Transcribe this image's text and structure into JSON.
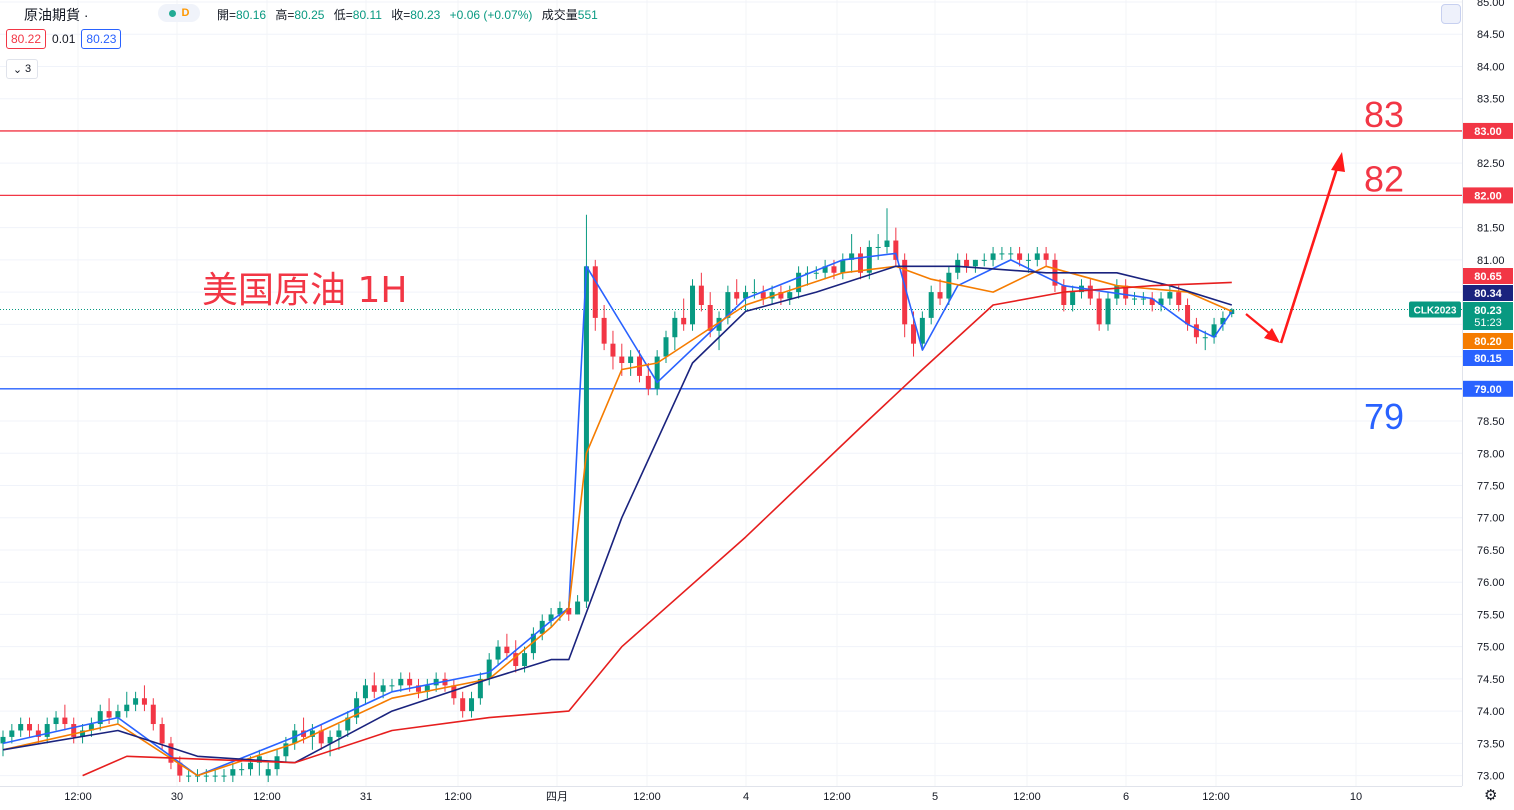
{
  "header": {
    "symbol": "原油期貨 ·",
    "interval_badge": "D",
    "ohlc": {
      "open_label": "開=",
      "open": "80.16",
      "high_label": "高=",
      "high": "80.25",
      "low_label": "低=",
      "low": "80.11",
      "close_label": "收=",
      "close": "80.23",
      "change": "+0.06 (+0.07%)",
      "volume_label": "成交量",
      "volume": "551"
    },
    "bid": "80.22",
    "spread": "0.01",
    "ask": "80.23",
    "indicator_count": "3"
  },
  "chart_data": {
    "type": "candlestick",
    "title": "美国原油 1H",
    "annotations": [
      {
        "text": "83",
        "price": 83.0,
        "color": "#f23645"
      },
      {
        "text": "82",
        "price": 82.0,
        "color": "#f23645"
      },
      {
        "text": "79",
        "price": 79.0,
        "color": "#2962ff"
      }
    ],
    "ylim": [
      72.9,
      85.0
    ],
    "y_ticks": [
      "85.00",
      "84.50",
      "84.00",
      "83.50",
      "83.00",
      "82.50",
      "82.00",
      "81.50",
      "81.00",
      "80.50",
      "80.00",
      "79.50",
      "79.00",
      "78.50",
      "78.00",
      "77.50",
      "77.00",
      "76.50",
      "76.00",
      "75.50",
      "75.00",
      "74.50",
      "74.00",
      "73.50",
      "73.00"
    ],
    "x_ticks": [
      "12:00",
      "30",
      "12:00",
      "31",
      "12:00",
      "四月",
      "12:00",
      "4",
      "12:00",
      "5",
      "12:00",
      "6",
      "12:00",
      "10"
    ],
    "horizontal_lines": [
      {
        "price": 83.0,
        "label": "83.00",
        "color": "#f23645"
      },
      {
        "price": 82.0,
        "label": "82.00",
        "color": "#f23645"
      },
      {
        "price": 79.0,
        "label": "79.00",
        "color": "#2962ff"
      }
    ],
    "price_tags": [
      {
        "label": "80.65",
        "color": "#f23645"
      },
      {
        "label": "80.34",
        "color": "#1a237e"
      },
      {
        "label": "80.23",
        "label2": "51:23",
        "color": "#089981"
      },
      {
        "label": "80.20",
        "color": "#f57c00"
      },
      {
        "label": "80.15",
        "color": "#2962ff"
      }
    ],
    "last_price": 80.23,
    "ticker_tag": "CLK2023",
    "series": [
      {
        "key": "candles",
        "up_color": "#089981",
        "down_color": "#f23645"
      },
      {
        "key": "ma_fast",
        "color": "#2962ff"
      },
      {
        "key": "ma_mid",
        "color": "#f57c00"
      },
      {
        "key": "ma_slow",
        "color": "#1a237e"
      },
      {
        "key": "ma_long",
        "color": "#e61e1e"
      }
    ],
    "candles": [
      [
        73.5,
        73.7,
        73.3,
        73.6
      ],
      [
        73.6,
        73.8,
        73.5,
        73.7
      ],
      [
        73.7,
        73.9,
        73.6,
        73.8
      ],
      [
        73.8,
        73.9,
        73.6,
        73.7
      ],
      [
        73.7,
        73.8,
        73.5,
        73.6
      ],
      [
        73.6,
        73.9,
        73.5,
        73.8
      ],
      [
        73.8,
        74.0,
        73.7,
        73.9
      ],
      [
        73.9,
        74.1,
        73.7,
        73.8
      ],
      [
        73.8,
        73.9,
        73.5,
        73.6
      ],
      [
        73.6,
        73.8,
        73.5,
        73.7
      ],
      [
        73.7,
        73.9,
        73.6,
        73.8
      ],
      [
        73.8,
        74.1,
        73.7,
        74.0
      ],
      [
        74.0,
        74.2,
        73.8,
        73.9
      ],
      [
        73.9,
        74.1,
        73.8,
        74.0
      ],
      [
        74.0,
        74.3,
        73.9,
        74.1
      ],
      [
        74.1,
        74.3,
        74.0,
        74.2
      ],
      [
        74.2,
        74.4,
        74.0,
        74.1
      ],
      [
        74.1,
        74.2,
        73.7,
        73.8
      ],
      [
        73.8,
        73.9,
        73.4,
        73.5
      ],
      [
        73.5,
        73.6,
        73.1,
        73.2
      ],
      [
        73.2,
        73.3,
        72.9,
        73.0
      ],
      [
        73.0,
        73.1,
        72.9,
        73.0
      ],
      [
        73.0,
        73.1,
        72.9,
        73.0
      ],
      [
        73.0,
        73.1,
        72.9,
        73.0
      ],
      [
        73.0,
        73.1,
        72.9,
        73.0
      ],
      [
        73.0,
        73.1,
        72.9,
        73.0
      ],
      [
        73.0,
        73.2,
        72.9,
        73.1
      ],
      [
        73.1,
        73.2,
        73.0,
        73.1
      ],
      [
        73.1,
        73.3,
        73.0,
        73.2
      ],
      [
        73.2,
        73.4,
        73.0,
        73.3
      ],
      [
        73.0,
        73.2,
        72.9,
        73.1
      ],
      [
        73.1,
        73.4,
        73.0,
        73.3
      ],
      [
        73.3,
        73.6,
        73.2,
        73.5
      ],
      [
        73.5,
        73.8,
        73.4,
        73.7
      ],
      [
        73.7,
        73.9,
        73.5,
        73.6
      ],
      [
        73.6,
        73.8,
        73.4,
        73.7
      ],
      [
        73.7,
        73.8,
        73.4,
        73.5
      ],
      [
        73.5,
        73.7,
        73.3,
        73.6
      ],
      [
        73.6,
        73.8,
        73.4,
        73.7
      ],
      [
        73.7,
        74.0,
        73.6,
        73.9
      ],
      [
        73.9,
        74.3,
        73.8,
        74.2
      ],
      [
        74.2,
        74.5,
        74.1,
        74.4
      ],
      [
        74.4,
        74.6,
        74.2,
        74.3
      ],
      [
        74.3,
        74.5,
        74.2,
        74.4
      ],
      [
        74.4,
        74.5,
        74.3,
        74.4
      ],
      [
        74.4,
        74.6,
        74.3,
        74.5
      ],
      [
        74.5,
        74.6,
        74.3,
        74.4
      ],
      [
        74.4,
        74.5,
        74.2,
        74.3
      ],
      [
        74.3,
        74.5,
        74.2,
        74.4
      ],
      [
        74.4,
        74.6,
        74.3,
        74.5
      ],
      [
        74.5,
        74.6,
        74.3,
        74.4
      ],
      [
        74.4,
        74.5,
        74.1,
        74.2
      ],
      [
        74.2,
        74.3,
        73.9,
        74.0
      ],
      [
        74.0,
        74.3,
        73.9,
        74.2
      ],
      [
        74.2,
        74.6,
        74.1,
        74.5
      ],
      [
        74.5,
        74.9,
        74.4,
        74.8
      ],
      [
        74.8,
        75.1,
        74.7,
        75.0
      ],
      [
        75.0,
        75.2,
        74.8,
        74.9
      ],
      [
        74.9,
        75.1,
        74.6,
        74.7
      ],
      [
        74.7,
        75.0,
        74.6,
        74.9
      ],
      [
        74.9,
        75.3,
        74.8,
        75.2
      ],
      [
        75.2,
        75.5,
        75.1,
        75.4
      ],
      [
        75.4,
        75.6,
        75.3,
        75.5
      ],
      [
        75.5,
        75.7,
        75.4,
        75.6
      ],
      [
        75.6,
        75.7,
        75.4,
        75.5
      ],
      [
        75.5,
        75.8,
        75.5,
        75.7
      ],
      [
        75.7,
        81.7,
        75.6,
        80.9
      ],
      [
        80.9,
        81.0,
        79.9,
        80.1
      ],
      [
        80.1,
        80.3,
        79.6,
        79.7
      ],
      [
        79.7,
        79.9,
        79.3,
        79.5
      ],
      [
        79.5,
        79.7,
        79.2,
        79.4
      ],
      [
        79.4,
        79.6,
        79.2,
        79.5
      ],
      [
        79.5,
        79.6,
        79.1,
        79.2
      ],
      [
        79.2,
        79.4,
        78.9,
        79.0
      ],
      [
        79.0,
        79.6,
        78.9,
        79.5
      ],
      [
        79.5,
        79.9,
        79.4,
        79.8
      ],
      [
        79.8,
        80.2,
        79.6,
        80.1
      ],
      [
        80.1,
        80.4,
        79.9,
        80.0
      ],
      [
        80.0,
        80.7,
        79.9,
        80.6
      ],
      [
        80.6,
        80.8,
        80.2,
        80.3
      ],
      [
        80.3,
        80.5,
        79.8,
        79.9
      ],
      [
        79.9,
        80.2,
        79.6,
        80.1
      ],
      [
        80.1,
        80.6,
        80.0,
        80.5
      ],
      [
        80.5,
        80.7,
        80.3,
        80.4
      ],
      [
        80.4,
        80.6,
        80.2,
        80.5
      ],
      [
        80.5,
        80.7,
        80.4,
        80.5
      ],
      [
        80.5,
        80.6,
        80.3,
        80.4
      ],
      [
        80.4,
        80.6,
        80.3,
        80.5
      ],
      [
        80.5,
        80.6,
        80.3,
        80.4
      ],
      [
        80.4,
        80.6,
        80.3,
        80.5
      ],
      [
        80.5,
        80.9,
        80.4,
        80.8
      ],
      [
        80.8,
        80.9,
        80.6,
        80.8
      ],
      [
        80.8,
        80.9,
        80.7,
        80.8
      ],
      [
        80.8,
        81.0,
        80.7,
        80.9
      ],
      [
        80.9,
        81.0,
        80.7,
        80.8
      ],
      [
        80.8,
        81.1,
        80.7,
        81.0
      ],
      [
        81.0,
        81.4,
        80.8,
        81.1
      ],
      [
        81.1,
        81.2,
        80.7,
        80.8
      ],
      [
        80.8,
        81.3,
        80.7,
        81.2
      ],
      [
        81.2,
        81.4,
        81.0,
        81.2
      ],
      [
        81.2,
        81.8,
        81.1,
        81.3
      ],
      [
        81.3,
        81.5,
        80.9,
        81.0
      ],
      [
        81.0,
        81.1,
        79.8,
        80.0
      ],
      [
        80.0,
        80.2,
        79.5,
        79.7
      ],
      [
        79.7,
        80.2,
        79.6,
        80.1
      ],
      [
        80.1,
        80.6,
        80.0,
        80.5
      ],
      [
        80.5,
        80.7,
        80.3,
        80.4
      ],
      [
        80.4,
        80.9,
        80.3,
        80.8
      ],
      [
        80.8,
        81.1,
        80.7,
        81.0
      ],
      [
        81.0,
        81.1,
        80.8,
        80.9
      ],
      [
        80.9,
        81.0,
        80.8,
        81.0
      ],
      [
        81.0,
        81.1,
        80.9,
        81.0
      ],
      [
        81.0,
        81.2,
        80.9,
        81.1
      ],
      [
        81.1,
        81.2,
        81.0,
        81.1
      ],
      [
        81.1,
        81.2,
        81.0,
        81.1
      ],
      [
        81.1,
        81.2,
        80.9,
        81.0
      ],
      [
        81.0,
        81.1,
        80.8,
        81.0
      ],
      [
        81.0,
        81.2,
        80.9,
        81.1
      ],
      [
        81.1,
        81.2,
        80.9,
        81.0
      ],
      [
        81.0,
        81.1,
        80.5,
        80.6
      ],
      [
        80.6,
        80.7,
        80.2,
        80.3
      ],
      [
        80.3,
        80.6,
        80.2,
        80.5
      ],
      [
        80.5,
        80.7,
        80.4,
        80.6
      ],
      [
        80.6,
        80.7,
        80.3,
        80.4
      ],
      [
        80.4,
        80.5,
        79.9,
        80.0
      ],
      [
        80.0,
        80.5,
        79.9,
        80.4
      ],
      [
        80.4,
        80.7,
        80.3,
        80.6
      ],
      [
        80.6,
        80.7,
        80.3,
        80.4
      ],
      [
        80.4,
        80.5,
        80.3,
        80.4
      ],
      [
        80.4,
        80.5,
        80.3,
        80.4
      ],
      [
        80.4,
        80.5,
        80.2,
        80.3
      ],
      [
        80.3,
        80.5,
        80.2,
        80.4
      ],
      [
        80.4,
        80.6,
        80.3,
        80.5
      ],
      [
        80.5,
        80.6,
        80.2,
        80.3
      ],
      [
        80.3,
        80.4,
        79.9,
        80.0
      ],
      [
        80.0,
        80.1,
        79.7,
        79.8
      ],
      [
        79.8,
        79.9,
        79.6,
        79.8
      ],
      [
        79.8,
        80.1,
        79.7,
        80.0
      ],
      [
        80.0,
        80.2,
        79.9,
        80.1
      ],
      [
        80.16,
        80.25,
        80.11,
        80.23
      ]
    ],
    "ma_fast": [
      [
        0,
        73.5
      ],
      [
        13,
        73.9
      ],
      [
        22,
        73.0
      ],
      [
        33,
        73.6
      ],
      [
        44,
        74.3
      ],
      [
        55,
        74.6
      ],
      [
        62,
        75.4
      ],
      [
        64,
        75.6
      ],
      [
        66,
        80.9
      ],
      [
        74,
        79.1
      ],
      [
        84,
        80.4
      ],
      [
        95,
        81.0
      ],
      [
        101,
        81.1
      ],
      [
        104,
        79.6
      ],
      [
        108,
        80.6
      ],
      [
        114,
        81.0
      ],
      [
        120,
        80.6
      ],
      [
        130,
        80.4
      ],
      [
        134,
        80.0
      ],
      [
        137,
        79.8
      ],
      [
        139,
        80.2
      ]
    ],
    "ma_mid": [
      [
        0,
        73.4
      ],
      [
        13,
        73.8
      ],
      [
        22,
        73.0
      ],
      [
        33,
        73.5
      ],
      [
        44,
        74.2
      ],
      [
        55,
        74.5
      ],
      [
        62,
        75.3
      ],
      [
        64,
        75.6
      ],
      [
        66,
        78.0
      ],
      [
        70,
        79.3
      ],
      [
        74,
        79.4
      ],
      [
        84,
        80.3
      ],
      [
        95,
        80.8
      ],
      [
        101,
        80.9
      ],
      [
        105,
        80.7
      ],
      [
        112,
        80.5
      ],
      [
        118,
        80.9
      ],
      [
        126,
        80.6
      ],
      [
        134,
        80.5
      ],
      [
        139,
        80.2
      ]
    ],
    "ma_slow": [
      [
        0,
        73.4
      ],
      [
        13,
        73.7
      ],
      [
        22,
        73.3
      ],
      [
        33,
        73.2
      ],
      [
        44,
        74.0
      ],
      [
        55,
        74.5
      ],
      [
        62,
        74.8
      ],
      [
        64,
        74.8
      ],
      [
        70,
        77.0
      ],
      [
        78,
        79.4
      ],
      [
        84,
        80.2
      ],
      [
        92,
        80.5
      ],
      [
        101,
        80.9
      ],
      [
        108,
        80.9
      ],
      [
        118,
        80.8
      ],
      [
        126,
        80.8
      ],
      [
        132,
        80.6
      ],
      [
        139,
        80.3
      ]
    ],
    "ma_long": [
      [
        9,
        73.0
      ],
      [
        14,
        73.3
      ],
      [
        33,
        73.2
      ],
      [
        44,
        73.7
      ],
      [
        55,
        73.9
      ],
      [
        64,
        74.0
      ],
      [
        70,
        75.0
      ],
      [
        84,
        76.7
      ],
      [
        97,
        78.4
      ],
      [
        104,
        79.3
      ],
      [
        112,
        80.3
      ],
      [
        120,
        80.5
      ],
      [
        130,
        80.6
      ],
      [
        139,
        80.65
      ]
    ]
  }
}
